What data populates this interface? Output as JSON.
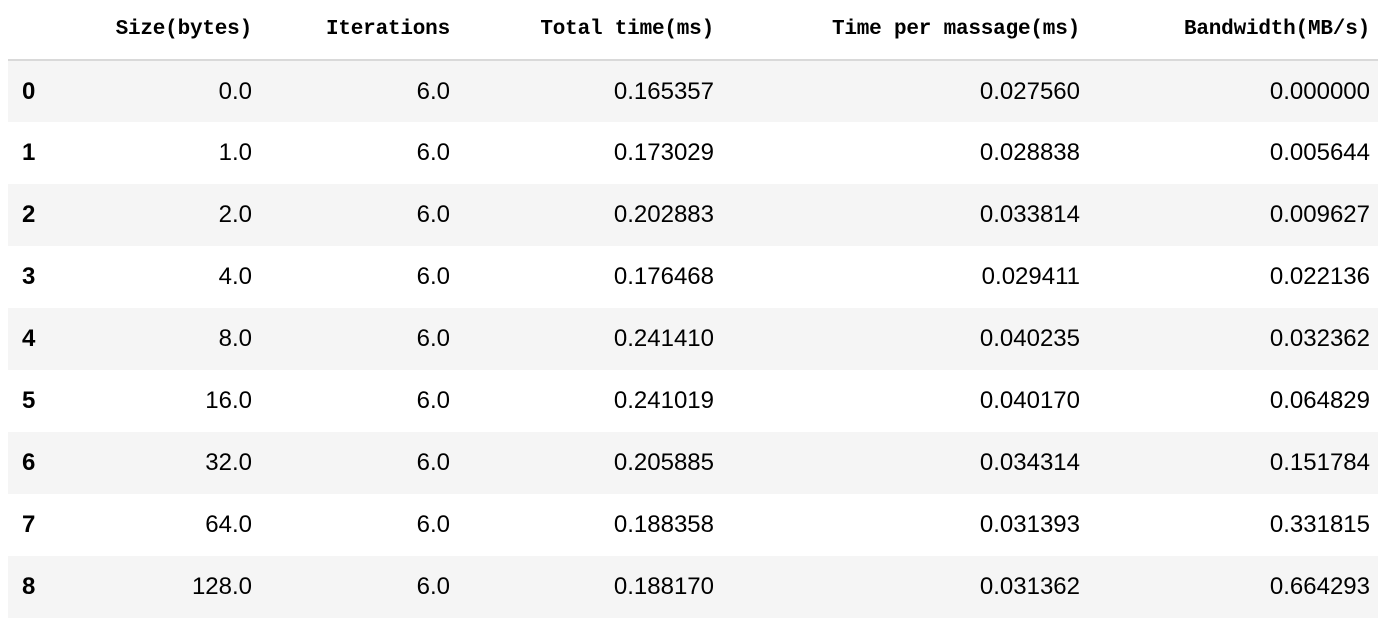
{
  "table": {
    "columns": [
      "Size(bytes)",
      "Iterations",
      "Total time(ms)",
      "Time per massage(ms)",
      "Bandwidth(MB/s)"
    ],
    "rows": [
      {
        "index": "0",
        "size": "0.0",
        "iterations": "6.0",
        "total_time": "0.165357",
        "time_per_message": "0.027560",
        "bandwidth": "0.000000"
      },
      {
        "index": "1",
        "size": "1.0",
        "iterations": "6.0",
        "total_time": "0.173029",
        "time_per_message": "0.028838",
        "bandwidth": "0.005644"
      },
      {
        "index": "2",
        "size": "2.0",
        "iterations": "6.0",
        "total_time": "0.202883",
        "time_per_message": "0.033814",
        "bandwidth": "0.009627"
      },
      {
        "index": "3",
        "size": "4.0",
        "iterations": "6.0",
        "total_time": "0.176468",
        "time_per_message": "0.029411",
        "bandwidth": "0.022136"
      },
      {
        "index": "4",
        "size": "8.0",
        "iterations": "6.0",
        "total_time": "0.241410",
        "time_per_message": "0.040235",
        "bandwidth": "0.032362"
      },
      {
        "index": "5",
        "size": "16.0",
        "iterations": "6.0",
        "total_time": "0.241019",
        "time_per_message": "0.040170",
        "bandwidth": "0.064829"
      },
      {
        "index": "6",
        "size": "32.0",
        "iterations": "6.0",
        "total_time": "0.205885",
        "time_per_message": "0.034314",
        "bandwidth": "0.151784"
      },
      {
        "index": "7",
        "size": "64.0",
        "iterations": "6.0",
        "total_time": "0.188358",
        "time_per_message": "0.031393",
        "bandwidth": "0.331815"
      },
      {
        "index": "8",
        "size": "128.0",
        "iterations": "6.0",
        "total_time": "0.188170",
        "time_per_message": "0.031362",
        "bandwidth": "0.664293"
      }
    ]
  },
  "colors": {
    "stripe": "#f5f5f5",
    "header_rule": "#d9d9d9",
    "text": "#000000"
  }
}
